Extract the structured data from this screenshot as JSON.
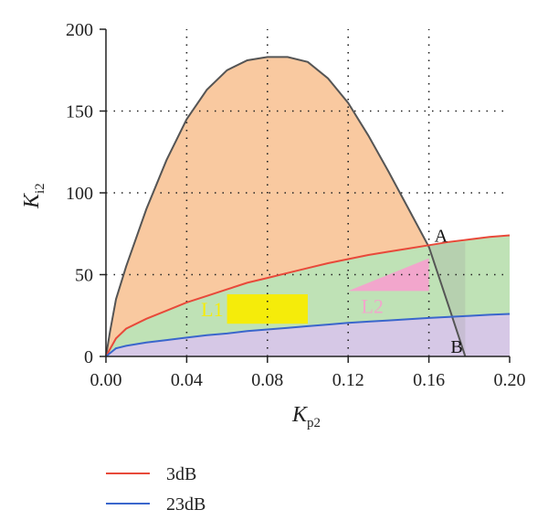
{
  "chart_data": {
    "type": "area",
    "title": "",
    "xlabel": "K",
    "xlabel_sub": "p2",
    "ylabel": "K",
    "ylabel_sub": "i2",
    "xlim": [
      0,
      0.2
    ],
    "ylim": [
      0,
      200
    ],
    "xticks": [
      "0.00",
      "0.04",
      "0.08",
      "0.12",
      "0.16",
      "0.20"
    ],
    "yticks": [
      "0",
      "50",
      "100",
      "150",
      "200"
    ],
    "grid": "dotted",
    "stability_boundary": {
      "x": [
        0.0,
        0.002,
        0.005,
        0.01,
        0.02,
        0.03,
        0.04,
        0.05,
        0.06,
        0.07,
        0.08,
        0.09,
        0.1,
        0.11,
        0.12,
        0.13,
        0.14,
        0.15,
        0.16,
        0.17,
        0.178
      ],
      "y": [
        0,
        15,
        35,
        55,
        90,
        120,
        145,
        163,
        175,
        181,
        183,
        183,
        180,
        170,
        155,
        135,
        113,
        90,
        67,
        30,
        0
      ],
      "color": "#555555",
      "fill": "#f9c9a0"
    },
    "series": [
      {
        "name": "3dB",
        "x": [
          0.0,
          0.005,
          0.01,
          0.02,
          0.03,
          0.04,
          0.05,
          0.06,
          0.07,
          0.08,
          0.09,
          0.1,
          0.11,
          0.12,
          0.13,
          0.14,
          0.15,
          0.16,
          0.17,
          0.18,
          0.19,
          0.2
        ],
        "y": [
          0,
          11,
          17,
          23,
          28,
          33,
          37,
          41,
          45,
          48,
          51,
          54,
          57,
          59.5,
          62,
          64,
          66,
          68,
          70,
          71.5,
          73,
          74
        ],
        "color": "#e8493a",
        "fill": "#bfe2b6"
      },
      {
        "name": "23dB",
        "x": [
          0.0,
          0.005,
          0.01,
          0.02,
          0.03,
          0.04,
          0.05,
          0.06,
          0.07,
          0.08,
          0.09,
          0.1,
          0.11,
          0.12,
          0.13,
          0.14,
          0.15,
          0.16,
          0.17,
          0.18,
          0.19,
          0.2
        ],
        "y": [
          0,
          5,
          6.5,
          8.5,
          10,
          11.5,
          13,
          14,
          15.5,
          16.5,
          17.5,
          18.5,
          19.5,
          20.5,
          21.3,
          22,
          22.8,
          23.5,
          24.2,
          24.8,
          25.5,
          26
        ],
        "color": "#3a66cc",
        "fill": "#d6c8e6"
      }
    ],
    "points": [
      {
        "label": "A",
        "x": 0.16,
        "y": 68
      },
      {
        "label": "B",
        "x": 0.178,
        "y": 0
      }
    ],
    "regions": [
      {
        "label": "L1",
        "shape": "rectangle",
        "x": [
          0.06,
          0.1
        ],
        "y": [
          20,
          38
        ],
        "color": "#f5ec0a"
      },
      {
        "label": "L2",
        "shape": "triangle",
        "x": [
          0.12,
          0.16
        ],
        "y": [
          40,
          60
        ],
        "color": "#f2a6cc"
      }
    ],
    "legend": {
      "placement": "bottom-left",
      "entries": [
        "3dB",
        "23dB"
      ]
    }
  }
}
